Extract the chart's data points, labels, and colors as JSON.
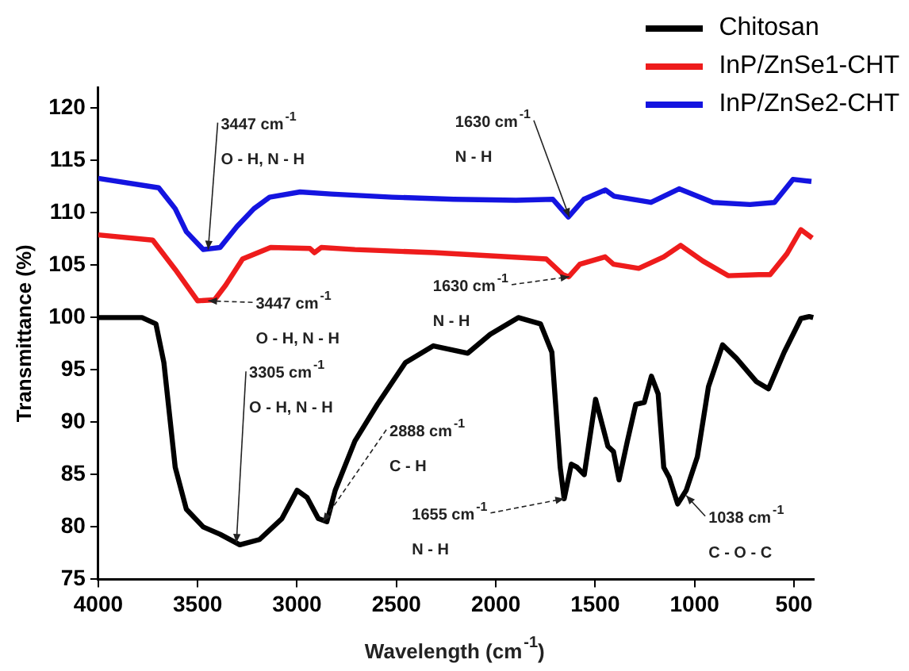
{
  "chart_data": {
    "type": "line",
    "xlabel": "Wavelength (cm$^{-1}$)",
    "ylabel": "Transmittance (%)",
    "xlim": [
      4000,
      400
    ],
    "xticks": [
      4000,
      3500,
      3000,
      2500,
      2000,
      1500,
      1000,
      500
    ],
    "ylim": [
      75,
      122
    ],
    "yticks": [
      75,
      80,
      85,
      90,
      95,
      100,
      105,
      110,
      115,
      120
    ],
    "grid": false,
    "legend": "top right",
    "marker": "none",
    "line_style": "solid",
    "series": [
      {
        "name": "Chitosan",
        "color": "#000000",
        "x": [
          4000,
          3780,
          3710,
          3670,
          3613,
          3557,
          3472,
          3387,
          3288,
          3189,
          3076,
          3000,
          2949,
          2893,
          2850,
          2808,
          2709,
          2596,
          2455,
          2314,
          2141,
          2028,
          1887,
          1775,
          1718,
          1676,
          1656,
          1620,
          1591,
          1555,
          1498,
          1436,
          1408,
          1380,
          1338,
          1296,
          1253,
          1217,
          1183,
          1155,
          1127,
          1085,
          1042,
          986,
          930,
          859,
          789,
          690,
          628,
          549,
          465,
          423,
          403
        ],
        "values": [
          100,
          100,
          99.4,
          95.7,
          85.7,
          81.7,
          80,
          79.3,
          78.3,
          78.8,
          80.8,
          83.5,
          82.8,
          80.8,
          80.5,
          83.5,
          88.2,
          91.7,
          95.7,
          97.3,
          96.6,
          98.4,
          100,
          99.4,
          96.7,
          85.7,
          82.7,
          86,
          85.7,
          85,
          92.2,
          87.7,
          87.2,
          84.5,
          88.2,
          91.7,
          91.9,
          94.4,
          92.7,
          85.7,
          84.7,
          82.2,
          83.5,
          86.7,
          93.4,
          97.4,
          96.1,
          93.9,
          93.2,
          96.7,
          99.9,
          100.1,
          100
        ]
      },
      {
        "name": "InP/ZnSe1-CHT",
        "color": "#ee1c1c",
        "x": [
          4000,
          3726,
          3613,
          3500,
          3415,
          3359,
          3274,
          3133,
          2935,
          2912,
          2878,
          2709,
          2310,
          1746,
          1662,
          1633,
          1577,
          1450,
          1408,
          1281,
          1155,
          1070,
          958,
          831,
          676,
          620,
          535,
          465,
          408
        ],
        "values": [
          107.9,
          107.4,
          104.6,
          101.6,
          101.7,
          103.1,
          105.6,
          106.7,
          106.6,
          106.2,
          106.7,
          106.5,
          106.2,
          105.6,
          104.1,
          103.9,
          105.1,
          105.8,
          105.1,
          104.7,
          105.8,
          106.9,
          105.4,
          104,
          104.1,
          104.1,
          106.1,
          108.4,
          107.6
        ]
      },
      {
        "name": "InP/ZnSe2-CHT",
        "color": "#1414e0",
        "x": [
          4000,
          3696,
          3613,
          3557,
          3472,
          3387,
          3302,
          3217,
          3138,
          2985,
          2829,
          2521,
          2211,
          1898,
          1713,
          1635,
          1557,
          1449,
          1405,
          1219,
          1078,
          907,
          721,
          598,
          505,
          412
        ],
        "values": [
          113.3,
          112.4,
          110.4,
          108.2,
          106.5,
          106.7,
          108.7,
          110.4,
          111.5,
          112,
          111.8,
          111.5,
          111.3,
          111.2,
          111.3,
          109.6,
          111.3,
          112.2,
          111.6,
          111,
          112.3,
          111,
          110.8,
          111,
          113.2,
          113
        ]
      }
    ],
    "annotations": [
      {
        "text": "3447 cm$^{-1}$",
        "x": 3447,
        "y": 106.5
      },
      "O - H, N - H",
      {
        "text": "3447 cm$^{-1}$",
        "x": 3447,
        "y": 101.6
      },
      "O - H, N - H",
      {
        "text": "1630 cm$^{-1}$",
        "x": 1630,
        "y": 109.6
      },
      "N - H",
      {
        "text": "1630 cm$^{-1}$",
        "x": 1630,
        "y": 103.9
      },
      "N - H",
      {
        "text": "3305 cm$^{-1}$",
        "x": 3305,
        "y": 78.5
      },
      "O - H, N - H",
      {
        "text": "2888 cm$^{-1}$",
        "x": 2870,
        "y": 80.5
      },
      "C - H",
      {
        "text": "1655 cm$^{-1}$",
        "x": 1656,
        "y": 82.7
      },
      "N - H",
      {
        "text": "1038 cm$^{-1}$",
        "x": 1042,
        "y": 83
      },
      "C - O - C"
    ]
  }
}
